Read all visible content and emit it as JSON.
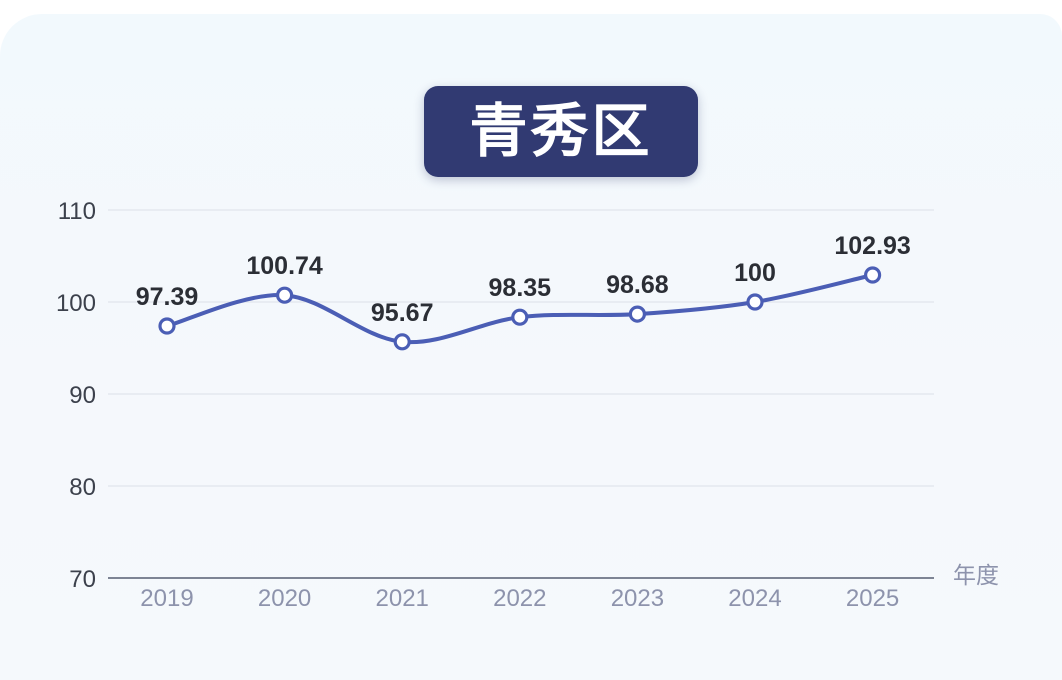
{
  "page": {
    "title_badge": "青秀区"
  },
  "colors": {
    "badge_navy": "#313a72",
    "badge_text": "#ffffff",
    "card_bg_top": "#f2f9fd",
    "card_bg_bottom": "#f5f9fc",
    "line": "#4b5eb5",
    "marker_fill": "#ffffff",
    "grid": "#e4e8ee",
    "axis": "#7d8494",
    "tick_dark": "#3c414c",
    "tick_muted": "#8d93ac",
    "label_dark": "#2b2e35"
  },
  "chart_data": {
    "type": "line",
    "title": "青秀区",
    "categories": [
      "2019",
      "2020",
      "2021",
      "2022",
      "2023",
      "2024",
      "2025"
    ],
    "values": [
      97.39,
      100.74,
      95.67,
      98.35,
      98.68,
      100,
      102.93
    ],
    "value_labels": [
      "97.39",
      "100.74",
      "95.67",
      "98.35",
      "98.68",
      "100",
      "102.93"
    ],
    "xlabel": "年度",
    "ylabel": "",
    "ylim": [
      70,
      110
    ],
    "ytick_step": 10,
    "yticks": [
      "110",
      "100",
      "90",
      "80",
      "70"
    ],
    "grid": true,
    "legend_position": "none",
    "line_smooth": true,
    "marker": "hollow-circle"
  }
}
